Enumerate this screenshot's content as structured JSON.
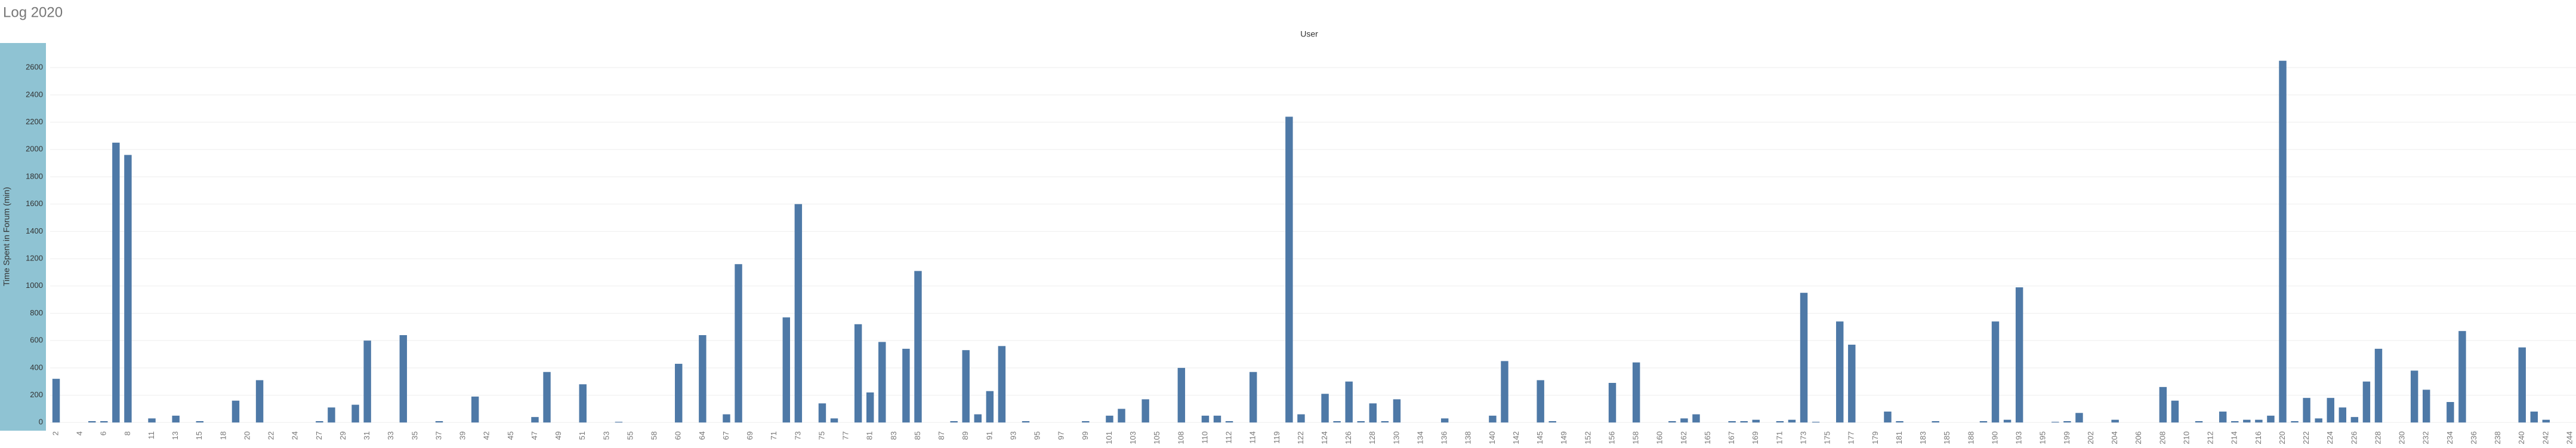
{
  "chart_data": {
    "type": "bar",
    "title": "Log 2020",
    "x_header": "User",
    "y_label": "Time Spent in Forum (min)",
    "categories": [
      "2",
      null,
      "4",
      null,
      "6",
      null,
      "8",
      null,
      "11",
      null,
      "13",
      null,
      "15",
      null,
      "18",
      null,
      "20",
      null,
      "22",
      null,
      "24",
      null,
      "27",
      null,
      "29",
      null,
      "31",
      null,
      "33",
      null,
      "35",
      null,
      "37",
      null,
      "39",
      null,
      "42",
      null,
      "45",
      null,
      "47",
      null,
      "49",
      null,
      "51",
      null,
      "53",
      null,
      "55",
      null,
      "58",
      null,
      "60",
      null,
      "64",
      null,
      "67",
      null,
      "69",
      null,
      "71",
      null,
      "73",
      null,
      "75",
      null,
      "77",
      null,
      "81",
      null,
      "83",
      null,
      "85",
      null,
      "87",
      null,
      "89",
      null,
      "91",
      null,
      "93",
      null,
      "95",
      null,
      "97",
      null,
      "99",
      null,
      "101",
      null,
      "103",
      null,
      "105",
      null,
      "108",
      null,
      "110",
      null,
      "112",
      null,
      "114",
      null,
      "119",
      null,
      "122",
      null,
      "124",
      null,
      "126",
      null,
      "128",
      null,
      "130",
      null,
      "134",
      null,
      "136",
      null,
      "138",
      null,
      "140",
      null,
      "142",
      null,
      "145",
      null,
      "149",
      null,
      "152",
      null,
      "156",
      null,
      "158",
      null,
      "160",
      null,
      "162",
      null,
      "165",
      null,
      "167",
      null,
      "169",
      null,
      "171",
      null,
      "173",
      null,
      "175",
      null,
      "177",
      null,
      "179",
      null,
      "181",
      null,
      "183",
      null,
      "185",
      null,
      "188",
      null,
      "190",
      null,
      "193",
      null,
      "195",
      null,
      "199",
      null,
      "202",
      null,
      "204",
      null,
      "206",
      null,
      "208",
      null,
      "210",
      null,
      "212",
      null,
      "214",
      null,
      "216",
      null,
      "220",
      null,
      "222",
      null,
      "224",
      null,
      "226",
      null,
      "228",
      null,
      "230",
      null,
      "232",
      null,
      "234",
      null,
      "236",
      null,
      "238",
      null,
      "240",
      null,
      "242",
      null,
      "244"
    ],
    "values": [
      320,
      0,
      0,
      10,
      10,
      2050,
      1960,
      0,
      30,
      0,
      50,
      0,
      10,
      0,
      0,
      160,
      0,
      310,
      0,
      0,
      0,
      0,
      10,
      110,
      0,
      130,
      600,
      0,
      0,
      640,
      0,
      0,
      10,
      0,
      0,
      190,
      0,
      0,
      0,
      0,
      40,
      370,
      0,
      0,
      280,
      0,
      0,
      5,
      0,
      0,
      0,
      0,
      430,
      0,
      640,
      0,
      60,
      1160,
      0,
      0,
      0,
      770,
      1600,
      0,
      140,
      30,
      0,
      720,
      220,
      590,
      0,
      540,
      1110,
      0,
      0,
      10,
      530,
      60,
      230,
      560,
      0,
      10,
      0,
      0,
      0,
      0,
      10,
      0,
      50,
      100,
      0,
      170,
      0,
      0,
      400,
      0,
      50,
      50,
      10,
      0,
      370,
      0,
      0,
      2240,
      60,
      0,
      210,
      10,
      300,
      10,
      140,
      10,
      170,
      0,
      0,
      0,
      30,
      0,
      0,
      0,
      50,
      450,
      0,
      0,
      310,
      10,
      0,
      0,
      0,
      0,
      290,
      0,
      440,
      0,
      0,
      10,
      30,
      60,
      0,
      0,
      10,
      10,
      20,
      0,
      10,
      20,
      950,
      5,
      0,
      740,
      570,
      0,
      0,
      80,
      10,
      0,
      0,
      10,
      0,
      0,
      0,
      10,
      740,
      20,
      990,
      0,
      0,
      5,
      10,
      70,
      0,
      0,
      20,
      0,
      0,
      0,
      260,
      160,
      0,
      10,
      0,
      80,
      10,
      20,
      20,
      50,
      2650,
      10,
      180,
      30,
      180,
      110,
      40,
      300,
      540,
      0,
      0,
      380,
      240,
      0,
      150,
      670,
      0,
      0,
      0,
      0,
      550,
      80,
      20,
      0,
      0
    ],
    "color": "#4e79a7",
    "ylim": [
      -60,
      2780
    ],
    "yticks": [
      0,
      200,
      400,
      600,
      800,
      1000,
      1200,
      1400,
      1600,
      1800,
      2000,
      2200,
      2400,
      2600
    ],
    "grid": true
  }
}
